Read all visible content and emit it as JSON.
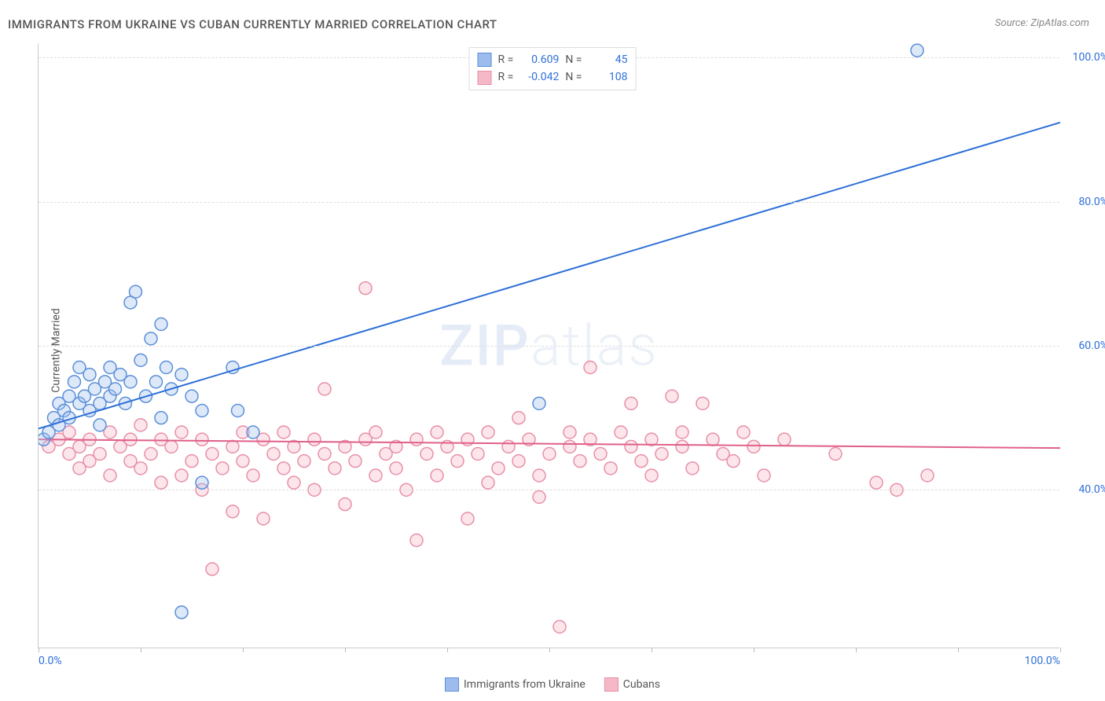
{
  "title": "IMMIGRANTS FROM UKRAINE VS CUBAN CURRENTLY MARRIED CORRELATION CHART",
  "source": "Source: ZipAtlas.com",
  "y_axis_label": "Currently Married",
  "watermark": {
    "part1": "ZIP",
    "part2": "atlas"
  },
  "chart": {
    "type": "scatter",
    "xlim": [
      0,
      100
    ],
    "ylim": [
      18,
      102
    ],
    "y_ticks": [
      40,
      60,
      80,
      100
    ],
    "y_tick_labels": [
      "40.0%",
      "60.0%",
      "80.0%",
      "100.0%"
    ],
    "x_ticks": [
      0,
      10,
      20,
      30,
      40,
      50,
      60,
      70,
      80,
      90,
      100
    ],
    "x_tick_labels": {
      "0": "0.0%",
      "100": "100.0%"
    },
    "background_color": "#ffffff",
    "grid_color": "#dddddd",
    "axis_color": "#cccccc",
    "tick_label_color": "#2d6fd8",
    "tick_label_fontsize": 14,
    "marker_radius": 8,
    "marker_stroke_width": 1.5,
    "marker_fill_opacity": 0.35,
    "trend_line_width": 2
  },
  "series": {
    "ukraine": {
      "label": "Immigrants from Ukraine",
      "fill_color": "#9dbced",
      "stroke_color": "#5a8fd8",
      "line_color": "#2d6fd8",
      "R": "0.609",
      "N": "45",
      "trend": {
        "x1": 0,
        "y1": 48.5,
        "x2": 100,
        "y2": 91
      },
      "points": [
        [
          0.5,
          47
        ],
        [
          1,
          48
        ],
        [
          1.5,
          50
        ],
        [
          2,
          52
        ],
        [
          2,
          49
        ],
        [
          2.5,
          51
        ],
        [
          3,
          53
        ],
        [
          3,
          50
        ],
        [
          3.5,
          55
        ],
        [
          4,
          52
        ],
        [
          4,
          57
        ],
        [
          4.5,
          53
        ],
        [
          5,
          51
        ],
        [
          5,
          56
        ],
        [
          5.5,
          54
        ],
        [
          6,
          52
        ],
        [
          6,
          49
        ],
        [
          6.5,
          55
        ],
        [
          7,
          53
        ],
        [
          7,
          57
        ],
        [
          7.5,
          54
        ],
        [
          8,
          56
        ],
        [
          8.5,
          52
        ],
        [
          9,
          55
        ],
        [
          9,
          66
        ],
        [
          9.5,
          67.5
        ],
        [
          10,
          58
        ],
        [
          10.5,
          53
        ],
        [
          11,
          61
        ],
        [
          11.5,
          55
        ],
        [
          12,
          50
        ],
        [
          12,
          63
        ],
        [
          12.5,
          57
        ],
        [
          13,
          54
        ],
        [
          14,
          56
        ],
        [
          15,
          53
        ],
        [
          16,
          51
        ],
        [
          16,
          41
        ],
        [
          19,
          57
        ],
        [
          19.5,
          51
        ],
        [
          21,
          48
        ],
        [
          14,
          23
        ],
        [
          49,
          52
        ],
        [
          86,
          101
        ]
      ]
    },
    "cubans": {
      "label": "Cubans",
      "fill_color": "#f5b8c6",
      "stroke_color": "#e88fa6",
      "line_color": "#e06088",
      "R": "-0.042",
      "N": "108",
      "trend": {
        "x1": 0,
        "y1": 47,
        "x2": 100,
        "y2": 45.8
      },
      "points": [
        [
          1,
          46
        ],
        [
          2,
          47
        ],
        [
          3,
          45
        ],
        [
          3,
          48
        ],
        [
          4,
          43
        ],
        [
          4,
          46
        ],
        [
          5,
          47
        ],
        [
          5,
          44
        ],
        [
          6,
          45
        ],
        [
          7,
          48
        ],
        [
          7,
          42
        ],
        [
          8,
          46
        ],
        [
          9,
          44
        ],
        [
          9,
          47
        ],
        [
          10,
          49
        ],
        [
          10,
          43
        ],
        [
          11,
          45
        ],
        [
          12,
          47
        ],
        [
          12,
          41
        ],
        [
          13,
          46
        ],
        [
          14,
          48
        ],
        [
          14,
          42
        ],
        [
          15,
          44
        ],
        [
          16,
          47
        ],
        [
          16,
          40
        ],
        [
          17,
          45
        ],
        [
          17,
          29
        ],
        [
          18,
          43
        ],
        [
          19,
          46
        ],
        [
          19,
          37
        ],
        [
          20,
          48
        ],
        [
          20,
          44
        ],
        [
          21,
          42
        ],
        [
          22,
          47
        ],
        [
          22,
          36
        ],
        [
          23,
          45
        ],
        [
          24,
          43
        ],
        [
          24,
          48
        ],
        [
          25,
          46
        ],
        [
          25,
          41
        ],
        [
          26,
          44
        ],
        [
          27,
          47
        ],
        [
          27,
          40
        ],
        [
          28,
          45
        ],
        [
          28,
          54
        ],
        [
          29,
          43
        ],
        [
          30,
          46
        ],
        [
          30,
          38
        ],
        [
          31,
          44
        ],
        [
          32,
          47
        ],
        [
          32,
          68
        ],
        [
          33,
          42
        ],
        [
          33,
          48
        ],
        [
          34,
          45
        ],
        [
          35,
          43
        ],
        [
          35,
          46
        ],
        [
          36,
          40
        ],
        [
          37,
          47
        ],
        [
          37,
          33
        ],
        [
          38,
          45
        ],
        [
          39,
          48
        ],
        [
          39,
          42
        ],
        [
          40,
          46
        ],
        [
          41,
          44
        ],
        [
          42,
          47
        ],
        [
          42,
          36
        ],
        [
          43,
          45
        ],
        [
          44,
          48
        ],
        [
          44,
          41
        ],
        [
          45,
          43
        ],
        [
          46,
          46
        ],
        [
          47,
          50
        ],
        [
          47,
          44
        ],
        [
          48,
          47
        ],
        [
          49,
          42
        ],
        [
          49,
          39
        ],
        [
          50,
          45
        ],
        [
          51,
          21
        ],
        [
          52,
          48
        ],
        [
          52,
          46
        ],
        [
          53,
          44
        ],
        [
          54,
          57
        ],
        [
          54,
          47
        ],
        [
          55,
          45
        ],
        [
          56,
          43
        ],
        [
          57,
          48
        ],
        [
          58,
          46
        ],
        [
          58,
          52
        ],
        [
          59,
          44
        ],
        [
          60,
          47
        ],
        [
          60,
          42
        ],
        [
          61,
          45
        ],
        [
          62,
          53
        ],
        [
          63,
          48
        ],
        [
          63,
          46
        ],
        [
          64,
          43
        ],
        [
          65,
          52
        ],
        [
          66,
          47
        ],
        [
          67,
          45
        ],
        [
          68,
          44
        ],
        [
          69,
          48
        ],
        [
          70,
          46
        ],
        [
          71,
          42
        ],
        [
          73,
          47
        ],
        [
          78,
          45
        ],
        [
          82,
          41
        ],
        [
          84,
          40
        ],
        [
          87,
          42
        ]
      ]
    }
  },
  "stat_legend": {
    "R_label": "R =",
    "N_label": "N ="
  }
}
